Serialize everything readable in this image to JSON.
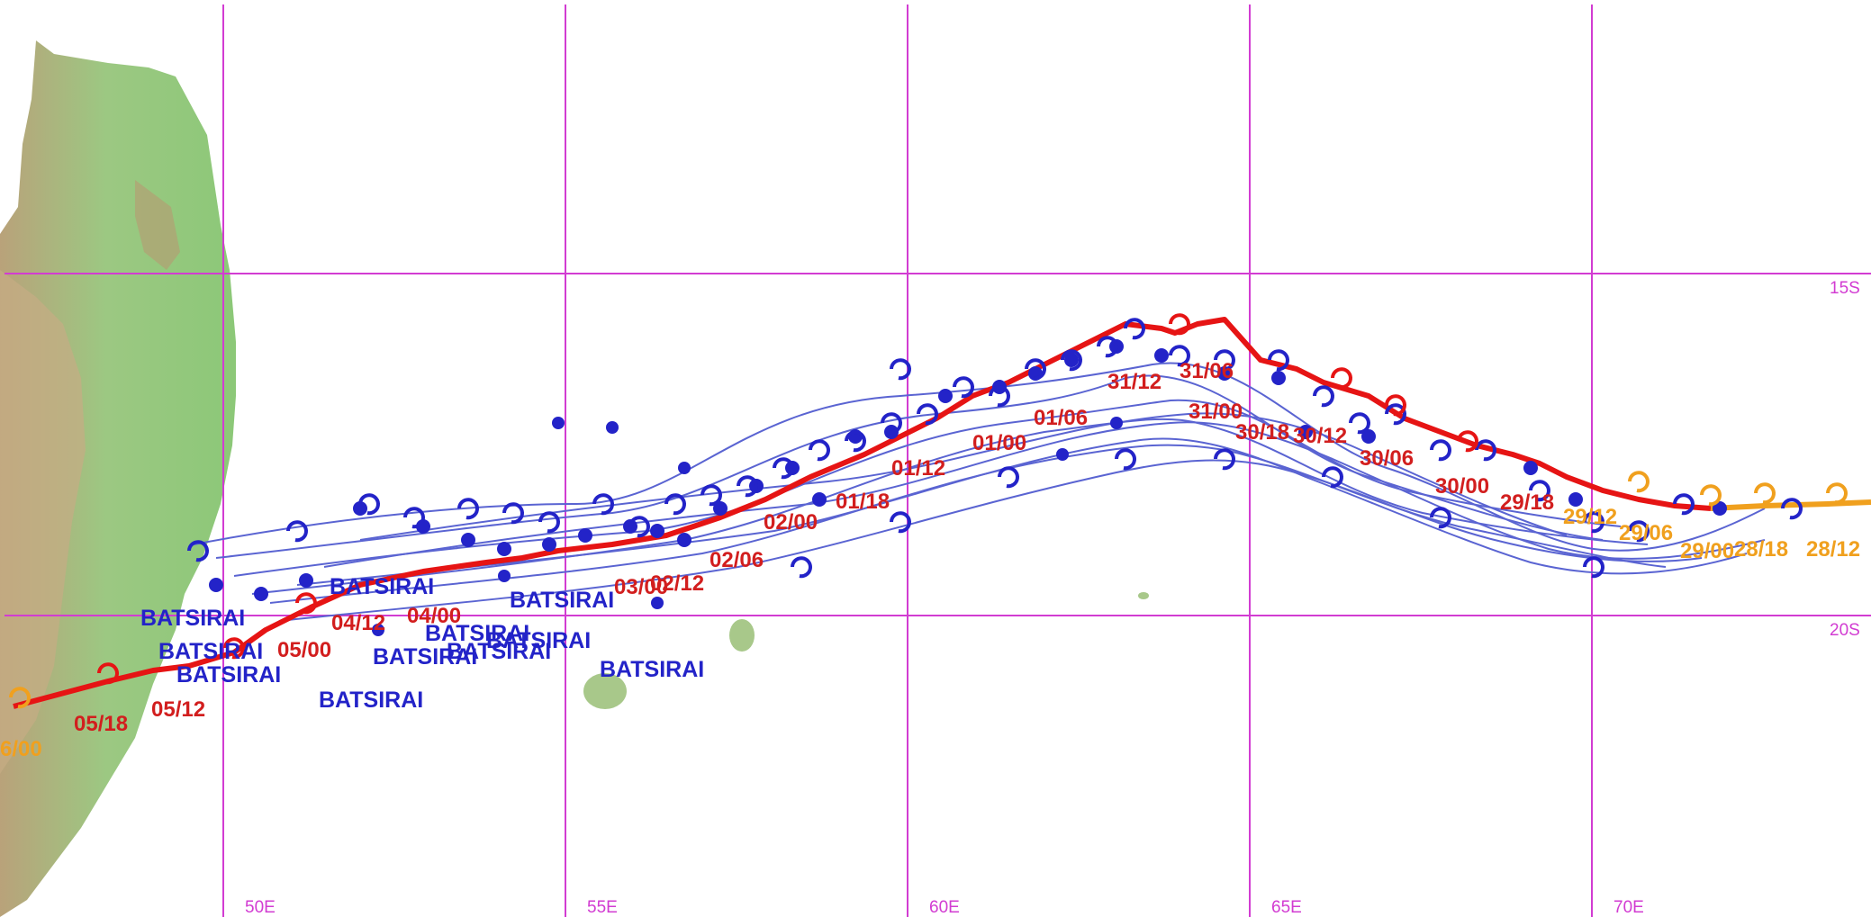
{
  "map": {
    "grid": {
      "longitudes": [
        "50E",
        "55E",
        "60E",
        "65E",
        "70E"
      ],
      "latitudes": [
        "15S",
        "20S"
      ]
    },
    "storm_name": "BATSIRAI",
    "observed_track_labels": [
      "05/12",
      "05/18",
      "05/00",
      "04/12",
      "04/00",
      "03/00",
      "02/12",
      "02/06",
      "02/00",
      "01/18",
      "01/12",
      "01/06",
      "01/00",
      "31/12",
      "31/06",
      "31/00",
      "30/18",
      "30/12",
      "30/06",
      "30/00",
      "29/18"
    ],
    "forecast_track_labels": [
      "6/00",
      "29/12",
      "29/06",
      "29/00",
      "28/18",
      "28/12"
    ],
    "ensemble_name_labels": [
      "BATSIRAI",
      "BATSIRAI",
      "BATSIRAI",
      "BATSIRAI",
      "BATSIRAI",
      "BATSIRAI",
      "BATSIRAI",
      "BATSIRAI",
      "BATSIRAI",
      "BATSIRAI",
      "BATSIRAI"
    ],
    "colors": {
      "land": "#8cc878",
      "highland": "#c8aa82",
      "grid": "#d23cd2",
      "observed_track": "#e61414",
      "forecast_track": "#f0a01e",
      "ensemble_track": "#2323c8",
      "ensemble_line": "#5a64d2"
    },
    "icons": [
      "cyclone-symbol-icon",
      "cyclone-position-dot-icon"
    ]
  }
}
